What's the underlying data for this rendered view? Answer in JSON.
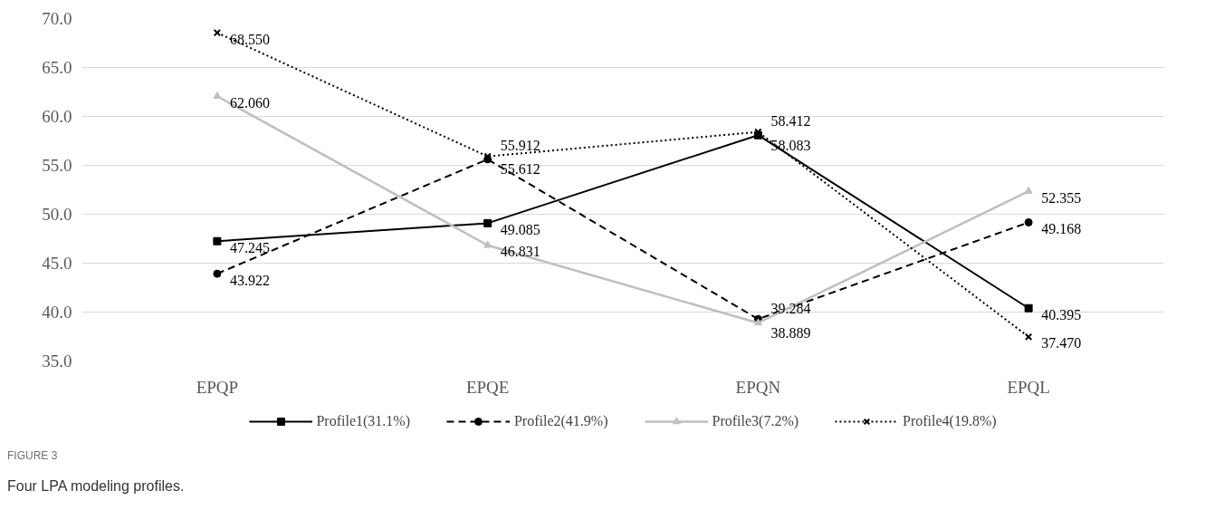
{
  "chart_data": {
    "type": "line",
    "categories": [
      "EPQP",
      "EPQE",
      "EPQN",
      "EPQL"
    ],
    "series": [
      {
        "name": "Profile1(31.1%)",
        "color": "#000000",
        "marker": "square",
        "line_style": "solid",
        "values": [
          47.245,
          49.085,
          58.083,
          40.395
        ],
        "value_labels": [
          "47.245",
          "49.085",
          "58.083",
          "40.395"
        ]
      },
      {
        "name": "Profile2(41.9%)",
        "color": "#000000",
        "marker": "circle",
        "line_style": "dashed",
        "values": [
          43.922,
          55.612,
          39.284,
          49.168
        ],
        "value_labels": [
          "43.922",
          "55.612",
          "39.284",
          "49.168"
        ]
      },
      {
        "name": "Profile3(7.2%)",
        "color": "#bfbfbf",
        "marker": "triangle",
        "line_style": "solid",
        "values": [
          62.06,
          46.831,
          38.889,
          52.355
        ],
        "value_labels": [
          "62.060",
          "46.831",
          "38.889",
          "52.355"
        ]
      },
      {
        "name": "Profile4(19.8%)",
        "color": "#000000",
        "marker": "cross",
        "line_style": "dotted",
        "values": [
          68.55,
          55.912,
          58.412,
          37.47
        ],
        "value_labels": [
          "68.550",
          "55.912",
          "58.412",
          "37.470"
        ]
      }
    ],
    "ylim": [
      35,
      70
    ],
    "yticks": [
      {
        "value": 35,
        "label": "35.0"
      },
      {
        "value": 40,
        "label": "40.0"
      },
      {
        "value": 45,
        "label": "45.0"
      },
      {
        "value": 50,
        "label": "50.0"
      },
      {
        "value": 55,
        "label": "55.0"
      },
      {
        "value": 60,
        "label": "60.0"
      },
      {
        "value": 65,
        "label": "65.0"
      },
      {
        "value": 70,
        "label": "70.0"
      }
    ],
    "grid": "y",
    "legend": "bottom",
    "annotations": [
      "FIGURE 3",
      "Four LPA modeling profiles."
    ]
  }
}
